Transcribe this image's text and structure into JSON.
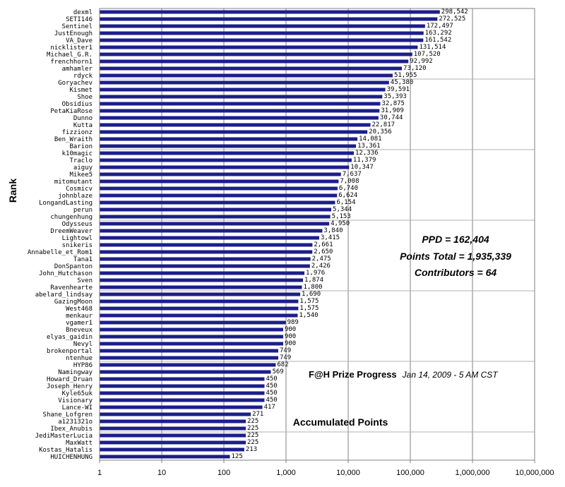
{
  "chart_data": {
    "type": "bar",
    "orientation": "horizontal",
    "x_scale": "log",
    "xlim": [
      1,
      10000000
    ],
    "x_ticks": [
      "1",
      "10",
      "100",
      "1,000",
      "10,000",
      "100,000",
      "1,000,000",
      "10,000,000"
    ],
    "xlabel": "Accumulated Points",
    "ylabel": "Rank",
    "grid": "vertical",
    "bar_color": "#1c1e8a",
    "categories": [
      "dexml",
      "SETI146",
      "Sentinel",
      "JustEnough",
      "VA_Dave",
      "nicklister1",
      "Michael_G.R.",
      "frenchhorn1",
      "amhamler",
      "rdyck",
      "Goryachev",
      "Kismet",
      "Shoe",
      "Obsidius",
      "PetaKiaRose",
      "Dunno",
      "Kutta",
      "fizzionz",
      "Ben_Wraith",
      "Barion",
      "k10magic",
      "Traclo",
      "aiguy",
      "Mikee5",
      "mitomutant",
      "Cosmicv",
      "johnblaze",
      "LongandLasting",
      "perun",
      "chungenhung",
      "Odysseus",
      "DreemWeaver",
      "Lightowl",
      "snikeris",
      "Annabelle_et_Rom1",
      "Tana1",
      "DonSpanton",
      "John_Hutchason",
      "Sven",
      "Ravenhearte",
      "abelard_lindsay",
      "GazingMoon",
      "West468",
      "menkaur",
      "vgamer1",
      "Bneveux",
      "elyas_gaidin",
      "Nevyl",
      "brokenportal",
      "ntenhue",
      "HYP86",
      "Namingway",
      "Howard_Druan",
      "Joseph_Henry",
      "Kyle65uk",
      "Visionary",
      "Lance-WI",
      "Shane_Lofgren",
      "a1231321o",
      "Ibex_Anubis",
      "JediMasterLucia",
      "MaxWatt",
      "Kostas_Hatalis",
      "HUICHENHUNG"
    ],
    "values": [
      298542,
      272525,
      172497,
      163292,
      161542,
      131514,
      107520,
      92992,
      73120,
      51955,
      45380,
      39591,
      35393,
      32875,
      31909,
      30744,
      22817,
      20356,
      14081,
      13361,
      12336,
      11379,
      10347,
      7637,
      7008,
      6740,
      6624,
      6154,
      5344,
      5153,
      4950,
      3840,
      3415,
      2661,
      2650,
      2475,
      2426,
      1976,
      1874,
      1800,
      1690,
      1575,
      1575,
      1540,
      989,
      900,
      900,
      900,
      749,
      749,
      682,
      569,
      450,
      450,
      450,
      450,
      417,
      271,
      225,
      225,
      225,
      225,
      213,
      125
    ],
    "value_labels": [
      "298,542",
      "272,525",
      "172,497",
      "163,292",
      "161,542",
      "131,514",
      "107,520",
      "92,992",
      "73,120",
      "51,955",
      "45,380",
      "39,591",
      "35,393",
      "32,875",
      "31,909",
      "30,744",
      "22,817",
      "20,356",
      "14,081",
      "13,361",
      "12,336",
      "11,379",
      "10,347",
      "7,637",
      "7,008",
      "6,740",
      "6,624",
      "6,154",
      "5,344",
      "5,153",
      "4,950",
      "3,840",
      "3,415",
      "2,661",
      "2,650",
      "2,475",
      "2,426",
      "1,976",
      "1,874",
      "1,800",
      "1,690",
      "1,575",
      "1,575",
      "1,540",
      "989",
      "900",
      "900",
      "900",
      "749",
      "749",
      "682",
      "569",
      "450",
      "450",
      "450",
      "450",
      "417",
      "271",
      "225",
      "225",
      "225",
      "225",
      "213",
      "125"
    ],
    "annotations": {
      "ppd": "PPD = 162,404",
      "points_total": "Points Total = 1,935,339",
      "contributors": "Contributors = 64",
      "progress_title": "F@H Prize Progress",
      "progress_date": "Jan 14, 2009 - 5 AM CST"
    }
  }
}
